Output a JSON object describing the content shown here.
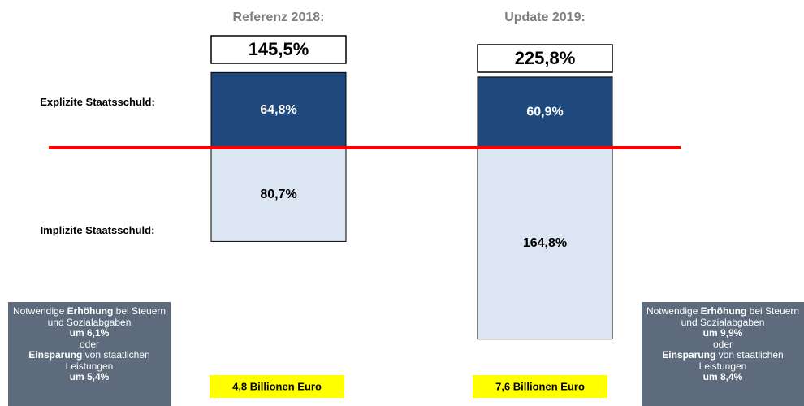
{
  "chart_data": {
    "type": "bar",
    "categories": [
      "Referenz 2018:",
      "Update 2019:"
    ],
    "series": [
      {
        "name": "Explizite Staatsschuld:",
        "color": "#1f497d",
        "values": [
          64.8,
          60.9
        ],
        "value_labels": [
          "64,8%",
          "60,9%"
        ]
      },
      {
        "name": "Implizite Staatsschuld:",
        "color": "#dce6f2",
        "values": [
          80.7,
          164.8
        ],
        "value_labels": [
          "80,7%",
          "164,8%"
        ]
      }
    ],
    "totals": [
      145.5,
      225.8
    ],
    "total_labels": [
      "145,5%",
      "225,8%"
    ],
    "amounts": [
      "4,8 Billionen Euro",
      "7,6 Billionen Euro"
    ],
    "notes": [
      [
        [
          {
            "text": "Notwendige "
          },
          {
            "text": "Erhöhung",
            "bold": true
          },
          {
            "text": " bei Steuern und Sozialabgaben"
          }
        ],
        [
          {
            "text": "um 6,1%",
            "bold": true
          }
        ],
        [
          {
            "text": "oder"
          }
        ],
        [
          {
            "text": "Einsparung",
            "bold": true
          },
          {
            "text": " von staatlichen Leistungen"
          }
        ],
        [
          {
            "text": "um 5,4%",
            "bold": true
          }
        ]
      ],
      [
        [
          {
            "text": "Notwendige "
          },
          {
            "text": "Erhöhung",
            "bold": true
          },
          {
            "text": " bei Steuern und Sozialabgaben"
          }
        ],
        [
          {
            "text": "um 9,9%",
            "bold": true
          }
        ],
        [
          {
            "text": "oder"
          }
        ],
        [
          {
            "text": "Einsparung",
            "bold": true
          },
          {
            "text": " von staatlichen Leistungen"
          }
        ],
        [
          {
            "text": "um 8,4%",
            "bold": true
          }
        ]
      ]
    ]
  }
}
